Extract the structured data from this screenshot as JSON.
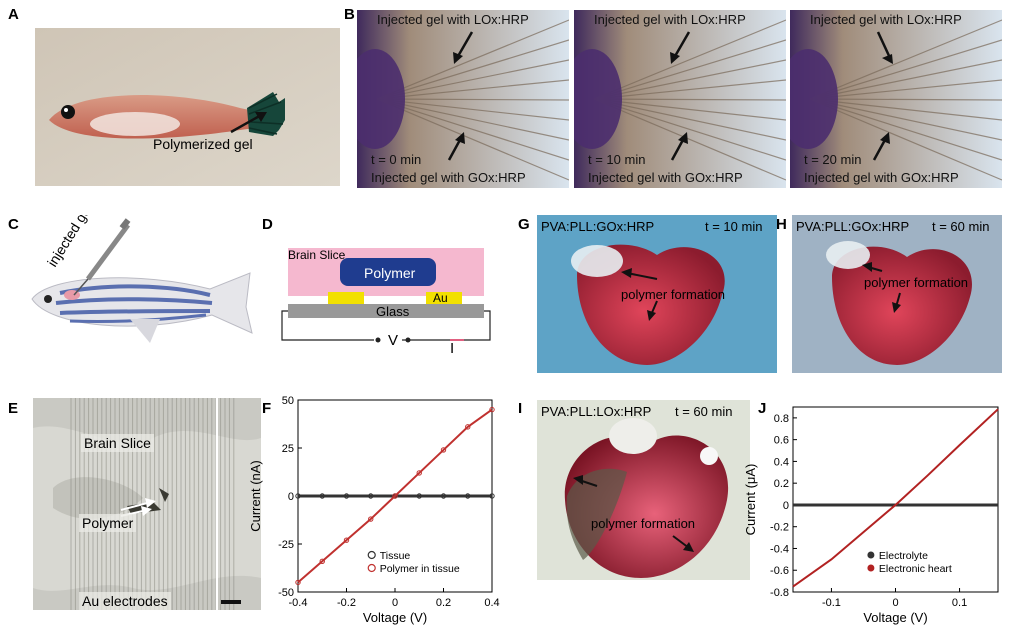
{
  "panel_labels": {
    "a": "A",
    "b": "B",
    "c": "C",
    "d": "D",
    "e": "E",
    "f": "F",
    "g": "G",
    "h": "H",
    "i": "I",
    "j": "J"
  },
  "panel_a": {
    "annotation": "Polymerized gel"
  },
  "panel_b": {
    "frames": [
      {
        "top": "Injected gel with LOx:HRP",
        "time": "t = 0 min",
        "bottom": "Injected gel with GOx:HRP"
      },
      {
        "top": "Injected gel with LOx:HRP",
        "time": "t = 10 min",
        "bottom": "Injected gel with GOx:HRP"
      },
      {
        "top": "Injected gel with LOx:HRP",
        "time": "t = 20 min",
        "bottom": "Injected gel with GOx:HRP"
      }
    ]
  },
  "panel_c": {
    "syringe_label": "injected gel"
  },
  "panel_d": {
    "brain_slice": "Brain Slice",
    "polymer": "Polymer",
    "au": "Au",
    "glass": "Glass",
    "v": "V",
    "i": "I"
  },
  "panel_e": {
    "brain_slice": "Brain Slice",
    "polymer": "Polymer",
    "electrodes": "Au electrodes"
  },
  "panel_g": {
    "title": "PVA:PLL:GOx:HRP",
    "time": "t = 10 min",
    "annotation": "polymer formation"
  },
  "panel_h": {
    "title": "PVA:PLL:GOx:HRP",
    "time": "t = 60 min",
    "annotation": "polymer formation"
  },
  "panel_i": {
    "title": "PVA:PLL:LOx:HRP",
    "time": "t = 60 min",
    "annotation": "polymer formation"
  },
  "colors": {
    "tissue": "#333333",
    "polymer_in_tissue": "#c0312f",
    "electrolyte": "#333333",
    "electronic_heart": "#b22222"
  },
  "chart_data": [
    {
      "panel": "F",
      "type": "line",
      "xlabel": "Voltage (V)",
      "ylabel": "Current (nA)",
      "xlim": [
        -0.4,
        0.4
      ],
      "ylim": [
        -50,
        50
      ],
      "xticks": [
        -0.4,
        -0.2,
        0,
        0.2,
        0.4
      ],
      "xtick_labels": [
        "-0.4",
        "-0.2",
        "0",
        "0.2",
        "0.4"
      ],
      "yticks": [
        -50,
        -25,
        0,
        25,
        50
      ],
      "ytick_labels": [
        "-50",
        "-25",
        "0",
        "25",
        "50"
      ],
      "legend_position": "bottom-right",
      "series": [
        {
          "name": "Tissue",
          "marker": "open-circle",
          "x": [
            -0.4,
            -0.3,
            -0.2,
            -0.1,
            0,
            0.1,
            0.2,
            0.3,
            0.4
          ],
          "y": [
            0,
            0,
            0,
            0,
            0,
            0,
            0,
            0,
            0
          ]
        },
        {
          "name": "Polymer in tissue",
          "marker": "open-circle",
          "x": [
            -0.4,
            -0.3,
            -0.2,
            -0.1,
            0,
            0.1,
            0.2,
            0.3,
            0.4
          ],
          "y": [
            -45,
            -34,
            -23,
            -12,
            0,
            12,
            24,
            36,
            45
          ]
        }
      ]
    },
    {
      "panel": "J",
      "type": "line",
      "xlabel": "Voltage (V)",
      "ylabel": "Current (μA)",
      "xlim": [
        -0.16,
        0.16
      ],
      "ylim": [
        -0.8,
        0.9
      ],
      "xticks": [
        -0.1,
        0,
        0.1
      ],
      "xtick_labels": [
        "-0.1",
        "0",
        "0.1"
      ],
      "yticks": [
        -0.8,
        -0.6,
        -0.4,
        -0.2,
        0,
        0.2,
        0.4,
        0.6,
        0.8
      ],
      "ytick_labels": [
        "-0.8",
        "-0.6",
        "-0.4",
        "-0.2",
        "0",
        "0.2",
        "0.4",
        "0.6",
        "0.8"
      ],
      "legend_position": "bottom-right",
      "series": [
        {
          "name": "Electrolyte",
          "marker": "filled-circle",
          "x": [
            -0.16,
            -0.1,
            0,
            0.1,
            0.16
          ],
          "y": [
            0,
            0,
            0,
            0,
            0
          ]
        },
        {
          "name": "Electronic heart",
          "marker": "filled-circle",
          "x": [
            -0.16,
            -0.1,
            -0.05,
            0,
            0.05,
            0.1,
            0.16
          ],
          "y": [
            -0.75,
            -0.5,
            -0.25,
            0,
            0.27,
            0.55,
            0.88
          ]
        }
      ]
    }
  ]
}
